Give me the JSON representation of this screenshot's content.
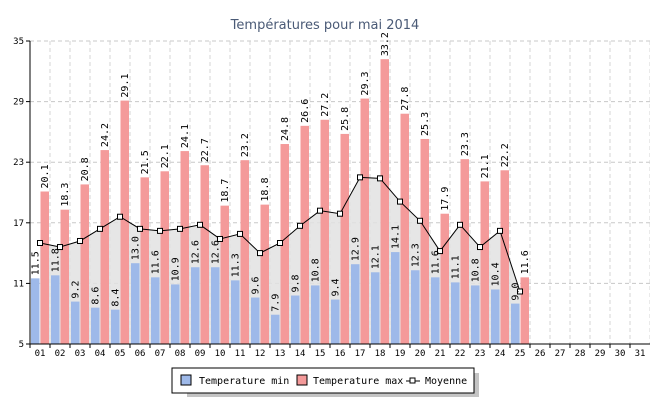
{
  "chart_data": {
    "type": "bar",
    "title": "Températures pour mai 2014",
    "categories": [
      "01",
      "02",
      "03",
      "04",
      "05",
      "06",
      "07",
      "08",
      "09",
      "10",
      "11",
      "12",
      "13",
      "14",
      "15",
      "16",
      "17",
      "18",
      "19",
      "20",
      "21",
      "22",
      "23",
      "24",
      "25",
      "26",
      "27",
      "28",
      "29",
      "30",
      "31"
    ],
    "series": [
      {
        "name": "Temperature min",
        "type": "bar",
        "color": "#9eb9e9",
        "values": [
          11.5,
          11.8,
          9.2,
          8.6,
          8.4,
          13.0,
          11.6,
          10.9,
          12.6,
          12.6,
          11.3,
          9.6,
          7.9,
          9.8,
          10.8,
          9.4,
          12.9,
          12.1,
          14.1,
          12.3,
          11.6,
          11.1,
          10.8,
          10.4,
          9.0,
          null,
          null,
          null,
          null,
          null,
          null
        ]
      },
      {
        "name": "Temperature max",
        "type": "bar",
        "color": "#f49a9a",
        "values": [
          20.1,
          18.3,
          20.8,
          24.2,
          29.1,
          21.5,
          22.1,
          24.1,
          22.7,
          18.7,
          23.2,
          18.8,
          24.8,
          26.6,
          27.2,
          25.8,
          29.3,
          33.2,
          27.8,
          25.3,
          17.9,
          23.3,
          21.1,
          22.2,
          11.6,
          null,
          null,
          null,
          null,
          null,
          null
        ]
      },
      {
        "name": "Moyenne",
        "type": "line",
        "color": "#000000",
        "values": [
          15.0,
          14.6,
          15.2,
          16.4,
          17.6,
          16.4,
          16.2,
          16.4,
          16.8,
          15.4,
          15.9,
          14.0,
          15.0,
          16.7,
          18.2,
          17.9,
          21.5,
          21.4,
          19.1,
          17.2,
          14.2,
          16.8,
          14.6,
          16.2,
          10.2,
          null,
          null,
          null,
          null,
          null,
          null
        ]
      }
    ],
    "ylim": [
      5,
      35
    ],
    "yticks": [
      5,
      11,
      17,
      23,
      29,
      35
    ],
    "grid": true,
    "legend": {
      "position": "bottom",
      "items": [
        "Temperature min",
        "Temperature max",
        "Moyenne"
      ]
    },
    "mean_fill_color": "#e2e2e2"
  }
}
